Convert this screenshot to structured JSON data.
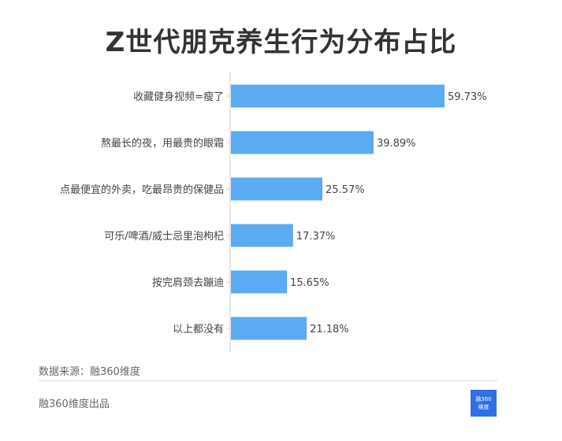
{
  "chart_data": {
    "type": "bar",
    "orientation": "horizontal",
    "title": "Z世代朋克养生行为分布占比",
    "categories": [
      "收藏健身视频=瘦了",
      "熬最长的夜，用最贵的眼霜",
      "点最便宜的外卖，吃最昂贵的保健品",
      "可乐/啤酒/威士忌里泡枸杞",
      "按完肩颈去蹦迪",
      "以上都没有"
    ],
    "values": [
      59.73,
      39.89,
      25.57,
      17.37,
      15.65,
      21.18
    ],
    "value_labels": [
      "59.73%",
      "39.89%",
      "25.57%",
      "17.37%",
      "15.65%",
      "21.18%"
    ],
    "unit": "%",
    "xlim": [
      0,
      70
    ],
    "grid": false,
    "bar_color": "#5aabf2"
  },
  "footer": {
    "source": "数据来源：融360维度",
    "brand": "融360维度出品",
    "logo_text": [
      "融360",
      "维度"
    ],
    "logo_color": "#2f6fe8"
  }
}
